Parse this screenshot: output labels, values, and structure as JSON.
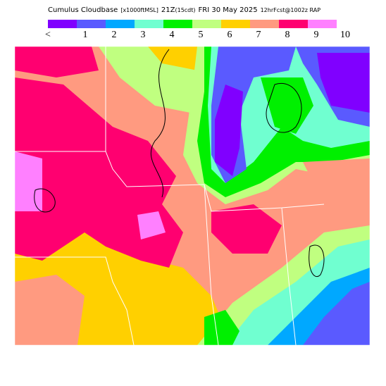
{
  "header": {
    "title": "Cumulus Cloudbase",
    "units": "[x1000ftMSL]",
    "time": "21Z",
    "local_time": "(15cdt)",
    "date": "FRI 30 May 2025",
    "forecast": "12hrFcst@1002z RAP"
  },
  "legend": {
    "items": [
      {
        "label": "<",
        "color": "#8000ff"
      },
      {
        "label": "1",
        "color": "#5a5aff"
      },
      {
        "label": "2",
        "color": "#00a8ff"
      },
      {
        "label": "3",
        "color": "#70ffd0"
      },
      {
        "label": "4",
        "color": "#00f000"
      },
      {
        "label": "5",
        "color": "#c0ff80"
      },
      {
        "label": "6",
        "color": "#ffd000"
      },
      {
        "label": "7",
        "color": "#ff9a80"
      },
      {
        "label": "8",
        "color": "#ff0070"
      },
      {
        "label": "9",
        "color": "#ff80ff"
      },
      {
        "label": "10",
        "color": null
      }
    ]
  }
}
